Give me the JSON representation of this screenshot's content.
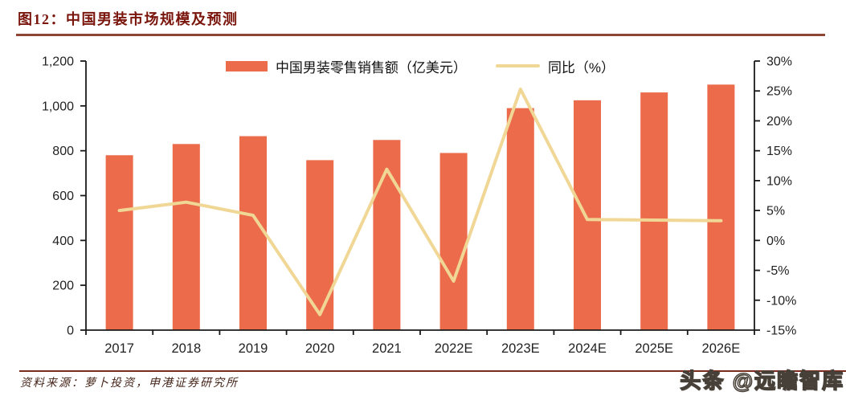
{
  "header": {
    "title": "图12：中国男装市场规模及预测"
  },
  "legend": {
    "sales_label": "中国男装零售销售额（亿美元）",
    "yoy_label": "同比（%）"
  },
  "footer": {
    "source": "资料来源：萝卜投资，申港证券研究所",
    "watermark": "头条 @远瞻智库"
  },
  "colors": {
    "bar": "#EB6B4B",
    "line": "#F0D795",
    "title_accent": "#7A150C",
    "title_rule": "#8E4536",
    "bottom_rule": "#7B2B1D",
    "axis": "#1a1a1a"
  },
  "chart_data": {
    "type": "bar",
    "title": "中国男装市场规模及预测",
    "categories": [
      "2017",
      "2018",
      "2019",
      "2020",
      "2021",
      "2022E",
      "2023E",
      "2024E",
      "2025E",
      "2026E"
    ],
    "series": [
      {
        "name": "中国男装零售销售额（亿美元）",
        "type": "bar",
        "axis": "left",
        "values": [
          780,
          830,
          865,
          758,
          848,
          790,
          990,
          1025,
          1060,
          1095
        ]
      },
      {
        "name": "同比（%）",
        "type": "line",
        "axis": "right",
        "values": [
          5.0,
          6.4,
          4.2,
          -12.4,
          11.9,
          -6.8,
          25.3,
          3.5,
          3.4,
          3.3
        ]
      }
    ],
    "left_axis": {
      "min": 0,
      "max": 1200,
      "ticks": [
        0,
        200,
        400,
        600,
        800,
        1000,
        1200
      ],
      "tick_labels": [
        "0",
        "200",
        "400",
        "600",
        "800",
        "1,000",
        "1,200"
      ]
    },
    "right_axis": {
      "min": -15,
      "max": 30,
      "ticks": [
        -15,
        -10,
        -5,
        0,
        5,
        10,
        15,
        20,
        25,
        30
      ],
      "tick_labels": [
        "-15%",
        "-10%",
        "-5%",
        "0%",
        "5%",
        "10%",
        "15%",
        "20%",
        "25%",
        "30%"
      ]
    },
    "grid": false,
    "legend_position": "top-center"
  }
}
